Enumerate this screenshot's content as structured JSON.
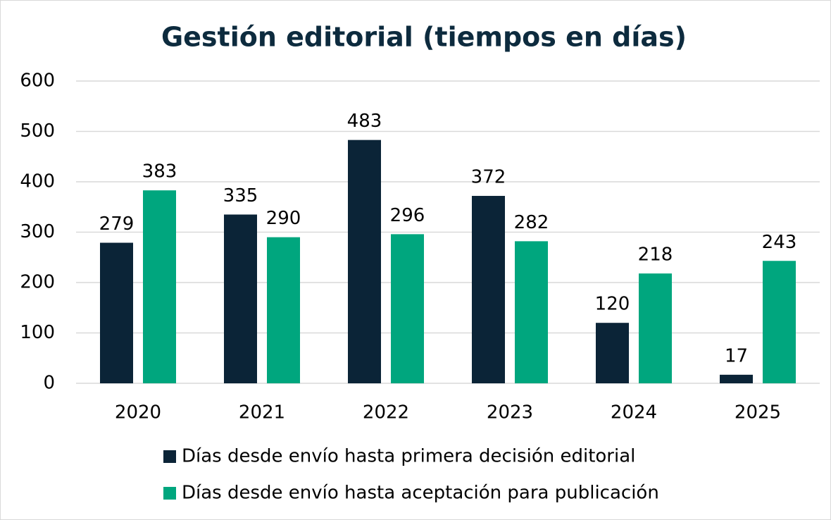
{
  "chart_data": {
    "type": "bar",
    "title": "Gestión editorial (tiempos en días)",
    "categories": [
      "2020",
      "2021",
      "2022",
      "2023",
      "2024",
      "2025"
    ],
    "series": [
      {
        "name": "Días desde envío hasta primera decisión editorial",
        "color": "#0b2437",
        "values": [
          279,
          335,
          483,
          372,
          120,
          17
        ]
      },
      {
        "name": "Días desde envío hasta aceptación para publicación",
        "color": "#00a67e",
        "values": [
          383,
          290,
          296,
          282,
          218,
          243
        ]
      }
    ],
    "ylim": [
      0,
      600
    ],
    "yticks": [
      0,
      100,
      200,
      300,
      400,
      500,
      600
    ],
    "grid": true,
    "legend": "bottom"
  }
}
